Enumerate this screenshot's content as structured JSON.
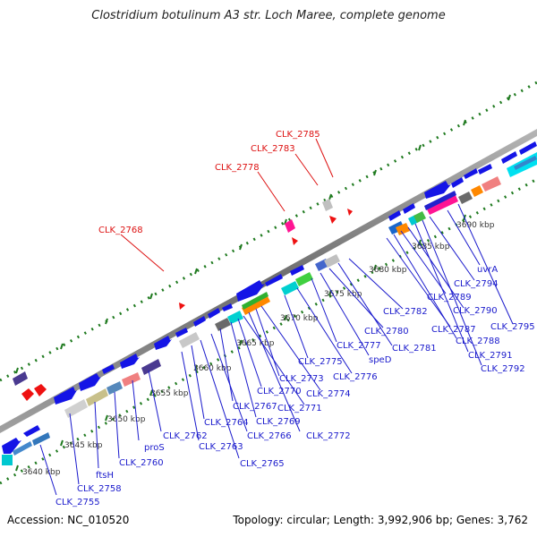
{
  "title": "Clostridium botulinum A3 str. Loch Maree, complete genome",
  "footer": {
    "accession": "Accession: NC_010520",
    "summary": "Topology: circular; Length: 3,992,906 bp; Genes: 3,762"
  },
  "scale_labels": [
    "3640 kbp",
    "3645 kbp",
    "3650 kbp",
    "3655 kbp",
    "3660 kbp",
    "3665 kbp",
    "3670 kbp",
    "3675 kbp",
    "3680 kbp",
    "3685 kbp",
    "3690 kbp"
  ],
  "gene_labels": [
    "CLK_2755",
    "CLK_2758",
    "ftsH",
    "CLK_2760",
    "proS",
    "CLK_2762",
    "CLK_2763",
    "CLK_2764",
    "CLK_2765",
    "CLK_2766",
    "CLK_2767",
    "CLK_2769",
    "CLK_2770",
    "CLK_2771",
    "CLK_2772",
    "CLK_2773",
    "CLK_2774",
    "CLK_2775",
    "CLK_2776",
    "CLK_2777",
    "speD",
    "CLK_2780",
    "CLK_2781",
    "CLK_2782",
    "CLK_2787",
    "CLK_2788",
    "CLK_2789",
    "CLK_2790",
    "CLK_2791",
    "CLK_2792",
    "CLK_2794",
    "CLK_2795",
    "uvrA"
  ],
  "rna_labels": [
    "CLK_2768",
    "CLK_2778",
    "CLK_2783",
    "CLK_2785"
  ],
  "colors": {
    "gene_label": "#1a1acc",
    "rna_label": "#dd1111",
    "backbone": "#7a7a7a",
    "tick_dots": "#1f7a1f",
    "gene_arrow": "#1414e6"
  }
}
